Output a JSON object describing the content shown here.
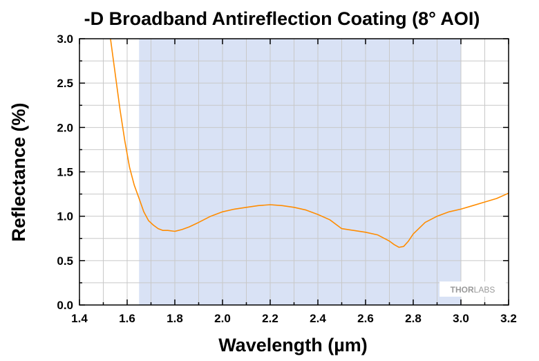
{
  "chart_data": {
    "type": "line",
    "title": "-D Broadband Antireflection Coating (8° AOI)",
    "xlabel": "Wavelength (µm)",
    "ylabel": "Reflectance (%)",
    "xlim": [
      1.4,
      3.2
    ],
    "ylim": [
      0.0,
      3.0
    ],
    "xticks": [
      "1.4",
      "1.6",
      "1.8",
      "2.0",
      "2.2",
      "2.4",
      "2.6",
      "2.8",
      "3.0",
      "3.2"
    ],
    "yticks": [
      "0.0",
      "0.5",
      "1.0",
      "1.5",
      "2.0",
      "2.5",
      "3.0"
    ],
    "grid": true,
    "highlight_band": [
      1.65,
      3.0
    ],
    "colors": {
      "series": "#ff8c00",
      "band": "#d9e2f5",
      "grid": "#c8c8c8"
    },
    "series": [
      {
        "x": [
          1.53,
          1.55,
          1.57,
          1.59,
          1.61,
          1.63,
          1.65,
          1.67,
          1.69,
          1.71,
          1.73,
          1.75,
          1.77,
          1.8,
          1.83,
          1.86,
          1.9,
          1.95,
          2.0,
          2.05,
          2.1,
          2.15,
          2.2,
          2.25,
          2.3,
          2.35,
          2.4,
          2.45,
          2.5,
          2.55,
          2.6,
          2.65,
          2.7,
          2.72,
          2.74,
          2.76,
          2.78,
          2.8,
          2.85,
          2.9,
          2.95,
          3.0,
          3.05,
          3.1,
          3.15,
          3.2
        ],
        "y": [
          3.0,
          2.6,
          2.2,
          1.85,
          1.55,
          1.35,
          1.2,
          1.05,
          0.95,
          0.9,
          0.86,
          0.84,
          0.84,
          0.83,
          0.85,
          0.88,
          0.93,
          1.0,
          1.05,
          1.08,
          1.1,
          1.12,
          1.13,
          1.12,
          1.1,
          1.07,
          1.02,
          0.96,
          0.86,
          0.84,
          0.82,
          0.79,
          0.72,
          0.68,
          0.65,
          0.66,
          0.72,
          0.8,
          0.93,
          1.0,
          1.05,
          1.08,
          1.12,
          1.16,
          1.2,
          1.26
        ]
      }
    ],
    "logo": {
      "part1": "THOR",
      "part2": "LABS"
    }
  }
}
